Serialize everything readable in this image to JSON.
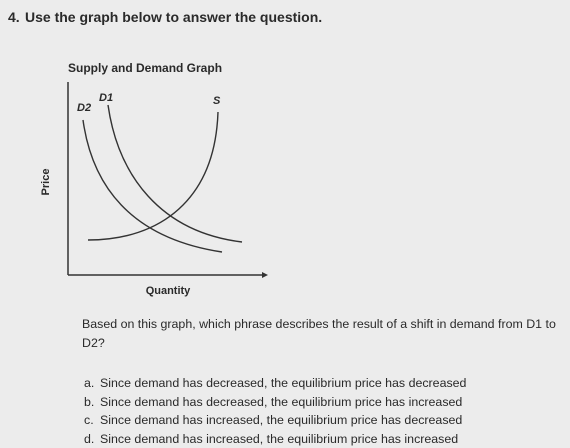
{
  "question": {
    "number": "4.",
    "instruction": "Use the graph below to answer the question."
  },
  "graph": {
    "title": "Supply and Demand Graph",
    "d2_label": "D2",
    "d1_label": "D1",
    "s_label": "S",
    "y_axis_label": "Price",
    "x_axis_label": "Quantity"
  },
  "prompt": "Based on this graph, which phrase describes the result of a shift in demand from D1 to D2?",
  "options": [
    {
      "letter": "a.",
      "text": "Since demand has decreased, the equilibrium price has decreased"
    },
    {
      "letter": "b.",
      "text": "Since demand has decreased, the equilibrium price has increased"
    },
    {
      "letter": "c.",
      "text": "Since demand has increased, the equilibrium price has decreased"
    },
    {
      "letter": "d.",
      "text": "Since demand has increased, the equilibrium price has increased"
    }
  ]
}
